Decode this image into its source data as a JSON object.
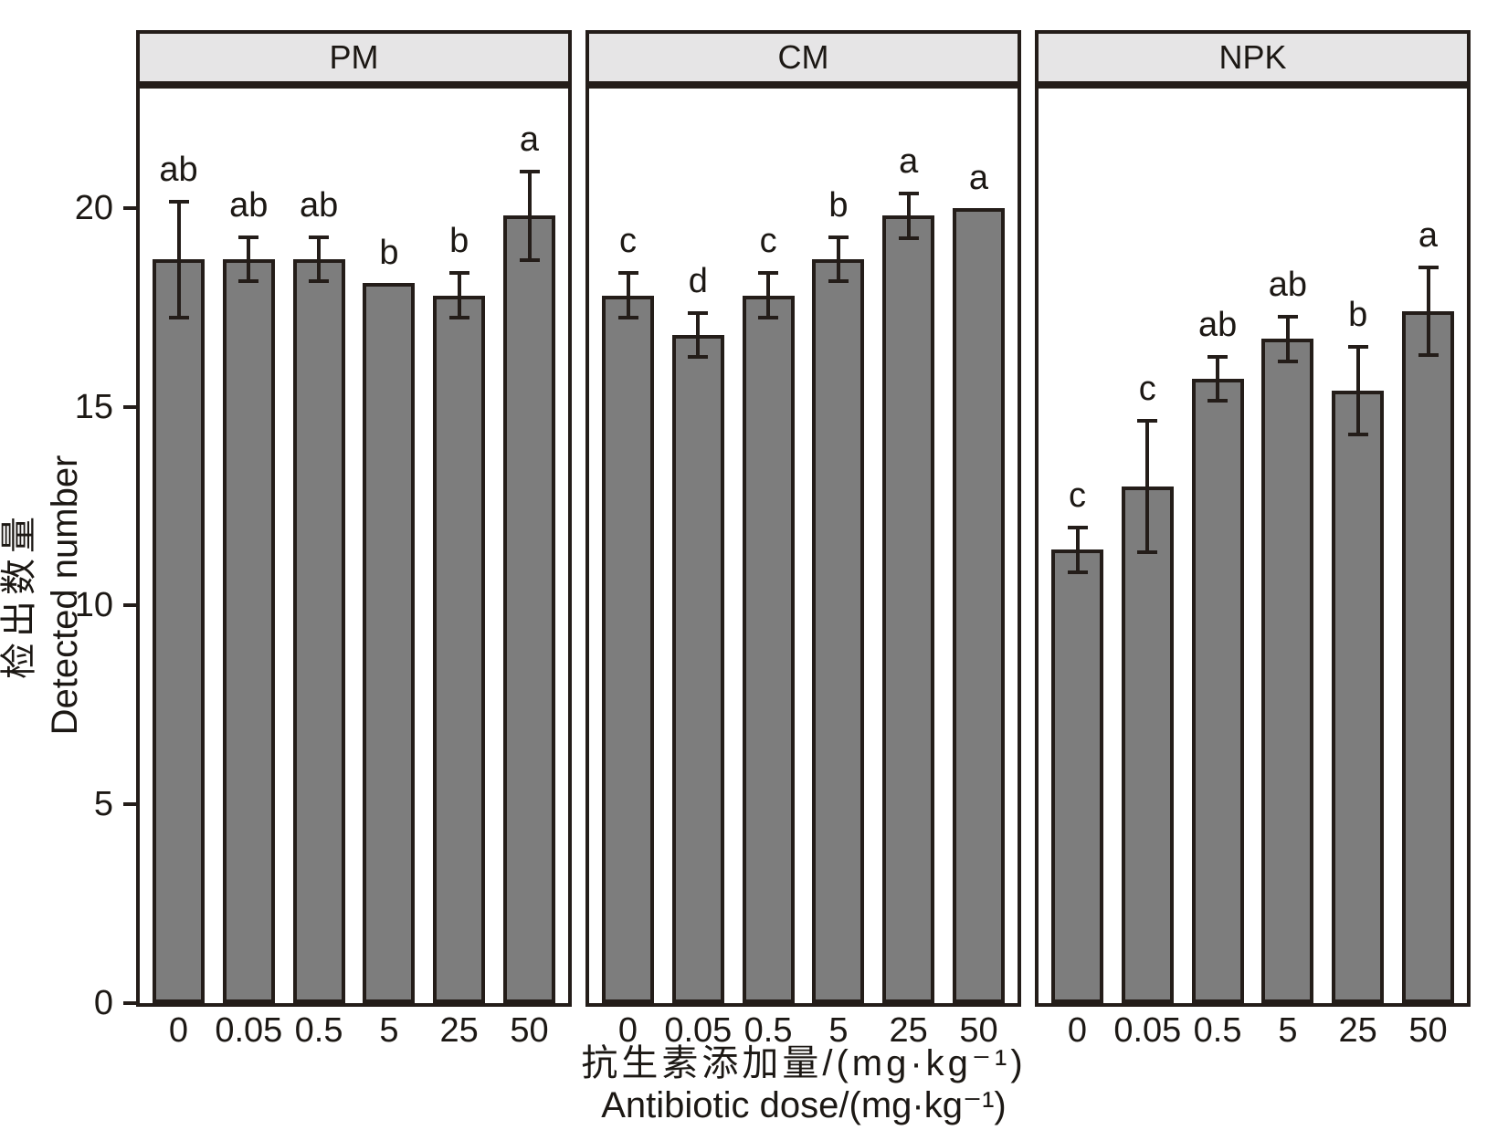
{
  "figure_type": "faceted-bar-chart",
  "chart_data": {
    "type": "bar",
    "title": "",
    "ylabel_zh": "检出数量",
    "ylabel_en": "Detected number",
    "xlabel_zh": "抗生素添加量/(mg·kg⁻¹)",
    "xlabel_en": "Antibiotic dose/(mg·kg⁻¹)",
    "ylim": [
      0,
      23
    ],
    "yticks": [
      0,
      5,
      10,
      15,
      20
    ],
    "grid": false,
    "legend": "none",
    "error_bars": "plus-minus, capped",
    "facets": [
      {
        "title": "PM",
        "categories": [
          "0",
          "0.05",
          "0.5",
          "5",
          "25",
          "50"
        ],
        "values": [
          18.7,
          18.7,
          18.7,
          18.1,
          17.8,
          19.8
        ],
        "errors": [
          1.5,
          0.6,
          0.6,
          null,
          0.6,
          1.15
        ],
        "sig_letters": [
          "ab",
          "ab",
          "ab",
          "b",
          "b",
          "a"
        ]
      },
      {
        "title": "CM",
        "categories": [
          "0",
          "0.05",
          "0.5",
          "5",
          "25",
          "50"
        ],
        "values": [
          17.8,
          16.8,
          17.8,
          18.7,
          19.8,
          20.0
        ],
        "errors": [
          0.6,
          0.6,
          0.6,
          0.6,
          0.6,
          null
        ],
        "sig_letters": [
          "c",
          "d",
          "c",
          "b",
          "a",
          "a"
        ]
      },
      {
        "title": "NPK",
        "categories": [
          "0",
          "0.05",
          "0.5",
          "5",
          "25",
          "50"
        ],
        "values": [
          11.4,
          13.0,
          15.7,
          16.7,
          15.4,
          17.4
        ],
        "errors": [
          0.6,
          1.7,
          0.6,
          0.6,
          1.15,
          1.15
        ],
        "sig_letters": [
          "c",
          "c",
          "ab",
          "ab",
          "b",
          "a"
        ]
      }
    ],
    "colors": {
      "bar_fill": "#7d7d7d",
      "line": "#241d19",
      "header_fill": "#e6e5e6",
      "background": "#ffffff",
      "text": "#1c1814"
    }
  }
}
